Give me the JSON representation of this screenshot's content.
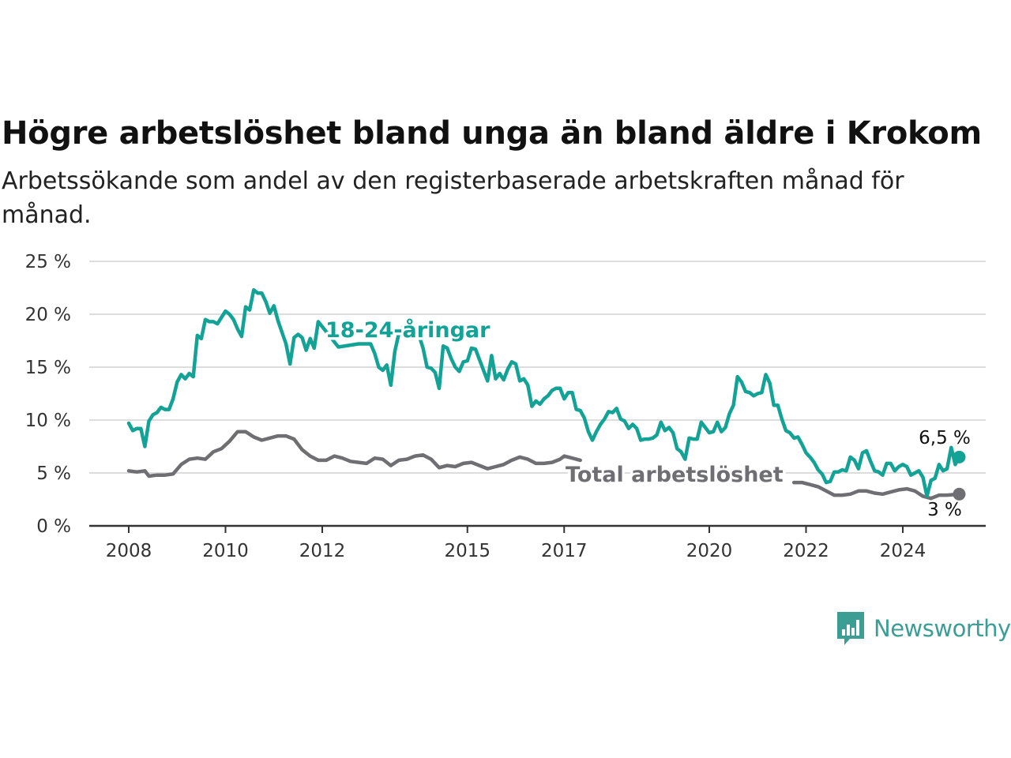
{
  "title": "Högre arbetslöshet bland unga än bland äldre i Krokom",
  "subtitle": "Arbetssökande som andel av den registerbaserade arbetskraften månad för månad.",
  "brand": {
    "name": "Newsworthy",
    "color": "#3c9d95"
  },
  "colors": {
    "youth": "#12a296",
    "total": "#6f6f73",
    "grid": "#dddddd",
    "axis": "#333333"
  },
  "chart_data": {
    "type": "line",
    "title": "Högre arbetslöshet bland unga än bland äldre i Krokom",
    "subtitle": "Arbetssökande som andel av den registerbaserade arbetskraften månad för månad.",
    "xlabel": "",
    "ylabel": "",
    "x_ticks": [
      "2008",
      "2010",
      "2012",
      "2015",
      "2017",
      "2020",
      "2022",
      "2024"
    ],
    "y_ticks": [
      "0 %",
      "5 %",
      "10 %",
      "15 %",
      "20 %",
      "25 %"
    ],
    "ylim": [
      0,
      25
    ],
    "xlim": [
      "2008-01",
      "2025-08"
    ],
    "grid": "horizontal",
    "legend": "direct labels",
    "series": [
      {
        "name": "18-24-åringar",
        "end_label": "6,5 %",
        "points": [
          [
            "2008-01",
            9.7
          ],
          [
            "2008-02",
            9.0
          ],
          [
            "2008-03",
            9.2
          ],
          [
            "2008-04",
            9.2
          ],
          [
            "2008-05",
            7.5
          ],
          [
            "2008-06",
            9.9
          ],
          [
            "2008-07",
            10.5
          ],
          [
            "2008-08",
            10.7
          ],
          [
            "2008-09",
            11.2
          ],
          [
            "2008-10",
            11.0
          ],
          [
            "2008-11",
            11.0
          ],
          [
            "2008-12",
            12.0
          ],
          [
            "2009-01",
            13.6
          ],
          [
            "2009-02",
            14.3
          ],
          [
            "2009-03",
            13.9
          ],
          [
            "2009-04",
            14.4
          ],
          [
            "2009-05",
            14.1
          ],
          [
            "2009-06",
            18.0
          ],
          [
            "2009-07",
            17.7
          ],
          [
            "2009-08",
            19.5
          ],
          [
            "2009-09",
            19.3
          ],
          [
            "2009-10",
            19.3
          ],
          [
            "2009-11",
            19.1
          ],
          [
            "2009-12",
            19.7
          ],
          [
            "2010-01",
            20.3
          ],
          [
            "2010-02",
            20.0
          ],
          [
            "2010-03",
            19.5
          ],
          [
            "2010-04",
            18.6
          ],
          [
            "2010-05",
            17.9
          ],
          [
            "2010-06",
            20.7
          ],
          [
            "2010-07",
            20.4
          ],
          [
            "2010-08",
            22.3
          ],
          [
            "2010-09",
            22.0
          ],
          [
            "2010-10",
            22.0
          ],
          [
            "2010-11",
            21.2
          ],
          [
            "2010-12",
            20.1
          ],
          [
            "2011-01",
            20.8
          ],
          [
            "2011-02",
            19.4
          ],
          [
            "2011-03",
            18.3
          ],
          [
            "2011-04",
            17.2
          ],
          [
            "2011-05",
            15.3
          ],
          [
            "2011-06",
            17.8
          ],
          [
            "2011-07",
            18.1
          ],
          [
            "2011-08",
            17.8
          ],
          [
            "2011-09",
            16.6
          ],
          [
            "2011-10",
            17.7
          ],
          [
            "2011-11",
            16.8
          ],
          [
            "2011-12",
            19.3
          ],
          [
            "2012-05",
            16.9
          ],
          [
            "2012-10",
            17.2
          ],
          [
            "2013-01",
            17.2
          ],
          [
            "2013-02",
            16.3
          ],
          [
            "2013-03",
            15.0
          ],
          [
            "2013-04",
            14.7
          ],
          [
            "2013-05",
            15.2
          ],
          [
            "2013-06",
            13.3
          ],
          [
            "2013-07",
            16.5
          ],
          [
            "2013-08",
            18.2
          ],
          [
            "2013-09",
            18.8
          ],
          [
            "2014-01",
            18.0
          ],
          [
            "2014-02",
            16.8
          ],
          [
            "2014-03",
            15.0
          ],
          [
            "2014-04",
            14.9
          ],
          [
            "2014-05",
            14.5
          ],
          [
            "2014-06",
            13.0
          ],
          [
            "2014-07",
            17.0
          ],
          [
            "2014-08",
            16.8
          ],
          [
            "2014-09",
            15.8
          ],
          [
            "2014-10",
            15.0
          ],
          [
            "2014-11",
            14.6
          ],
          [
            "2014-12",
            15.5
          ],
          [
            "2015-01",
            15.6
          ],
          [
            "2015-02",
            16.8
          ],
          [
            "2015-03",
            16.7
          ],
          [
            "2015-04",
            15.7
          ],
          [
            "2015-05",
            14.7
          ],
          [
            "2015-06",
            13.7
          ],
          [
            "2015-07",
            16.1
          ],
          [
            "2015-08",
            13.9
          ],
          [
            "2015-09",
            14.4
          ],
          [
            "2015-10",
            13.8
          ],
          [
            "2015-11",
            14.8
          ],
          [
            "2015-12",
            15.5
          ],
          [
            "2016-01",
            15.3
          ],
          [
            "2016-02",
            13.7
          ],
          [
            "2016-03",
            13.9
          ],
          [
            "2016-04",
            13.3
          ],
          [
            "2016-05",
            11.3
          ],
          [
            "2016-06",
            11.8
          ],
          [
            "2016-07",
            11.5
          ],
          [
            "2016-08",
            12.0
          ],
          [
            "2016-09",
            12.3
          ],
          [
            "2016-10",
            12.8
          ],
          [
            "2016-11",
            13.0
          ],
          [
            "2016-12",
            13.0
          ],
          [
            "2017-01",
            12.0
          ],
          [
            "2017-02",
            12.6
          ],
          [
            "2017-03",
            12.6
          ],
          [
            "2017-04",
            11.0
          ],
          [
            "2017-05",
            10.9
          ],
          [
            "2017-06",
            10.2
          ],
          [
            "2017-07",
            8.9
          ],
          [
            "2017-08",
            8.1
          ],
          [
            "2017-09",
            8.9
          ],
          [
            "2017-10",
            9.6
          ],
          [
            "2017-11",
            10.1
          ],
          [
            "2017-12",
            10.8
          ],
          [
            "2018-01",
            10.7
          ],
          [
            "2018-02",
            11.1
          ],
          [
            "2018-03",
            10.1
          ],
          [
            "2018-04",
            9.9
          ],
          [
            "2018-05",
            9.2
          ],
          [
            "2018-06",
            9.6
          ],
          [
            "2018-07",
            9.2
          ],
          [
            "2018-08",
            8.1
          ],
          [
            "2018-09",
            8.2
          ],
          [
            "2018-10",
            8.2
          ],
          [
            "2018-11",
            8.3
          ],
          [
            "2018-12",
            8.6
          ],
          [
            "2019-01",
            9.8
          ],
          [
            "2019-02",
            9.0
          ],
          [
            "2019-03",
            9.3
          ],
          [
            "2019-04",
            8.8
          ],
          [
            "2019-05",
            7.3
          ],
          [
            "2019-06",
            7.0
          ],
          [
            "2019-07",
            6.3
          ],
          [
            "2019-08",
            8.3
          ],
          [
            "2019-09",
            8.2
          ],
          [
            "2019-10",
            8.2
          ],
          [
            "2019-11",
            9.8
          ],
          [
            "2019-12",
            9.3
          ],
          [
            "2020-01",
            8.8
          ],
          [
            "2020-02",
            8.9
          ],
          [
            "2020-03",
            9.8
          ],
          [
            "2020-04",
            8.9
          ],
          [
            "2020-05",
            9.3
          ],
          [
            "2020-06",
            10.6
          ],
          [
            "2020-07",
            11.4
          ],
          [
            "2020-08",
            14.1
          ],
          [
            "2020-09",
            13.6
          ],
          [
            "2020-10",
            12.7
          ],
          [
            "2020-11",
            12.6
          ],
          [
            "2020-12",
            12.3
          ],
          [
            "2021-01",
            12.5
          ],
          [
            "2021-02",
            12.6
          ],
          [
            "2021-03",
            14.3
          ],
          [
            "2021-04",
            13.5
          ],
          [
            "2021-05",
            11.4
          ],
          [
            "2021-06",
            11.4
          ],
          [
            "2021-07",
            10.1
          ],
          [
            "2021-08",
            9.0
          ],
          [
            "2021-09",
            8.8
          ],
          [
            "2021-10",
            8.3
          ],
          [
            "2021-11",
            8.4
          ],
          [
            "2021-12",
            7.7
          ],
          [
            "2022-01",
            6.9
          ],
          [
            "2022-02",
            6.5
          ],
          [
            "2022-03",
            6.0
          ],
          [
            "2022-04",
            5.3
          ],
          [
            "2022-05",
            4.9
          ],
          [
            "2022-06",
            4.1
          ],
          [
            "2022-07",
            4.2
          ],
          [
            "2022-08",
            5.1
          ],
          [
            "2022-09",
            5.1
          ],
          [
            "2022-10",
            5.3
          ],
          [
            "2022-11",
            5.2
          ],
          [
            "2022-12",
            6.5
          ],
          [
            "2023-01",
            6.2
          ],
          [
            "2023-02",
            5.4
          ],
          [
            "2023-03",
            6.9
          ],
          [
            "2023-04",
            7.1
          ],
          [
            "2023-05",
            6.1
          ],
          [
            "2023-06",
            5.2
          ],
          [
            "2023-07",
            5.1
          ],
          [
            "2023-08",
            4.8
          ],
          [
            "2023-09",
            5.9
          ],
          [
            "2023-10",
            5.9
          ],
          [
            "2023-11",
            5.2
          ],
          [
            "2023-12",
            5.6
          ],
          [
            "2024-01",
            5.8
          ],
          [
            "2024-02",
            5.6
          ],
          [
            "2024-03",
            4.8
          ],
          [
            "2024-04",
            5.0
          ],
          [
            "2024-05",
            5.2
          ],
          [
            "2024-06",
            4.6
          ],
          [
            "2024-07",
            2.8
          ],
          [
            "2024-08",
            4.3
          ],
          [
            "2024-09",
            4.5
          ],
          [
            "2024-10",
            5.8
          ],
          [
            "2024-11",
            5.2
          ],
          [
            "2024-12",
            5.4
          ],
          [
            "2025-01",
            7.4
          ],
          [
            "2025-02",
            5.8
          ],
          [
            "2025-03",
            6.5
          ]
        ]
      },
      {
        "name": "Total arbetslöshet",
        "end_label": "3 %",
        "points": [
          [
            "2008-01",
            5.2
          ],
          [
            "2008-03",
            5.1
          ],
          [
            "2008-05",
            5.2
          ],
          [
            "2008-06",
            4.7
          ],
          [
            "2008-08",
            4.8
          ],
          [
            "2008-10",
            4.8
          ],
          [
            "2008-12",
            4.9
          ],
          [
            "2009-02",
            5.8
          ],
          [
            "2009-04",
            6.3
          ],
          [
            "2009-06",
            6.4
          ],
          [
            "2009-08",
            6.3
          ],
          [
            "2009-10",
            7.0
          ],
          [
            "2009-12",
            7.3
          ],
          [
            "2010-02",
            8.0
          ],
          [
            "2010-04",
            8.9
          ],
          [
            "2010-06",
            8.9
          ],
          [
            "2010-08",
            8.4
          ],
          [
            "2010-10",
            8.1
          ],
          [
            "2010-12",
            8.3
          ],
          [
            "2011-02",
            8.5
          ],
          [
            "2011-04",
            8.5
          ],
          [
            "2011-06",
            8.2
          ],
          [
            "2011-08",
            7.2
          ],
          [
            "2011-10",
            6.6
          ],
          [
            "2011-12",
            6.2
          ],
          [
            "2012-02",
            6.2
          ],
          [
            "2012-04",
            6.6
          ],
          [
            "2012-06",
            6.4
          ],
          [
            "2012-08",
            6.1
          ],
          [
            "2012-10",
            6.0
          ],
          [
            "2012-12",
            5.9
          ],
          [
            "2013-02",
            6.4
          ],
          [
            "2013-04",
            6.3
          ],
          [
            "2013-06",
            5.7
          ],
          [
            "2013-08",
            6.2
          ],
          [
            "2013-10",
            6.3
          ],
          [
            "2013-12",
            6.6
          ],
          [
            "2014-02",
            6.7
          ],
          [
            "2014-04",
            6.3
          ],
          [
            "2014-06",
            5.5
          ],
          [
            "2014-08",
            5.7
          ],
          [
            "2014-10",
            5.6
          ],
          [
            "2014-12",
            5.9
          ],
          [
            "2015-02",
            6.0
          ],
          [
            "2015-04",
            5.7
          ],
          [
            "2015-06",
            5.4
          ],
          [
            "2015-08",
            5.6
          ],
          [
            "2015-10",
            5.8
          ],
          [
            "2015-12",
            6.2
          ],
          [
            "2016-02",
            6.5
          ],
          [
            "2016-04",
            6.3
          ],
          [
            "2016-06",
            5.9
          ],
          [
            "2016-08",
            5.9
          ],
          [
            "2016-10",
            6.0
          ],
          [
            "2016-12",
            6.3
          ],
          [
            "2017-01",
            6.6
          ],
          [
            "2017-03",
            6.4
          ],
          [
            "2017-05",
            6.2
          ],
          [
            "2021-10",
            4.1
          ],
          [
            "2021-12",
            4.1
          ],
          [
            "2022-02",
            3.9
          ],
          [
            "2022-04",
            3.7
          ],
          [
            "2022-06",
            3.3
          ],
          [
            "2022-08",
            2.9
          ],
          [
            "2022-10",
            2.9
          ],
          [
            "2022-12",
            3.0
          ],
          [
            "2023-02",
            3.3
          ],
          [
            "2023-04",
            3.3
          ],
          [
            "2023-06",
            3.1
          ],
          [
            "2023-08",
            3.0
          ],
          [
            "2023-10",
            3.2
          ],
          [
            "2023-12",
            3.4
          ],
          [
            "2024-02",
            3.5
          ],
          [
            "2024-04",
            3.3
          ],
          [
            "2024-06",
            2.8
          ],
          [
            "2024-08",
            2.6
          ],
          [
            "2024-10",
            2.9
          ],
          [
            "2024-12",
            2.9
          ],
          [
            "2025-03",
            3.0
          ]
        ]
      }
    ]
  }
}
